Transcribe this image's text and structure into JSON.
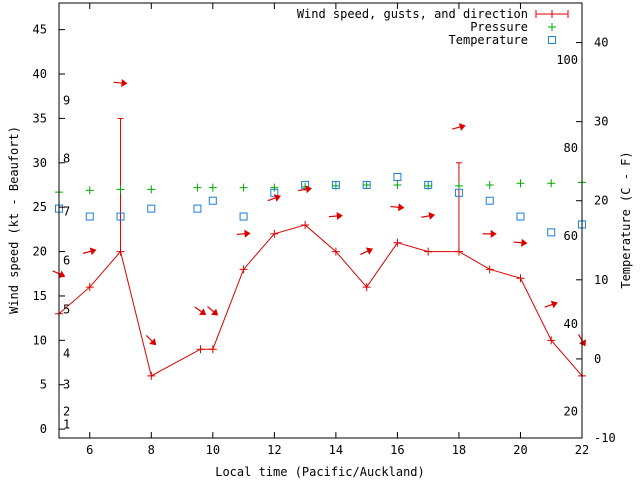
{
  "chart_data": {
    "type": "line",
    "xlabel": "Local time (Pacific/Auckland)",
    "ylabel": "Wind speed (kt - Beaufort)",
    "y2label": "Temperature (C - F)",
    "xlim": [
      5,
      22
    ],
    "ylim": [
      -1,
      48
    ],
    "y2lim": [
      -10,
      45
    ],
    "x_ticks": [
      "6",
      "8",
      "10",
      "12",
      "14",
      "16",
      "18",
      "20",
      "22"
    ],
    "y_ticks": [
      "0",
      "5",
      "10",
      "15",
      "20",
      "25",
      "30",
      "35",
      "40",
      "45"
    ],
    "y2_ticks": [
      "-10",
      "0",
      "10",
      "20",
      "30",
      "40"
    ],
    "fahrenheit_ticks": [
      "20",
      "40",
      "60",
      "80",
      "100"
    ],
    "beaufort_ticks": [
      "1",
      "2",
      "3",
      "4",
      "5",
      "6",
      "7",
      "8",
      "9"
    ],
    "legend_position": "top-right",
    "colors": {
      "wind": "#dd0000",
      "pressure": "#00aa00",
      "temperature": "#1c7fd6"
    },
    "series": [
      {
        "name": "Wind speed, gusts, and direction",
        "x": [
          5,
          6,
          7,
          8,
          9.6,
          10,
          11,
          12,
          13,
          14,
          15,
          16,
          17,
          18,
          19,
          20,
          21,
          22
        ],
        "values": [
          13,
          16,
          20,
          6,
          9,
          9,
          18,
          22,
          23,
          20,
          16,
          21,
          20,
          20,
          18,
          17,
          10,
          6
        ],
        "gusts": [
          {
            "x": 7,
            "value": 35
          },
          {
            "x": 18,
            "value": 30
          }
        ]
      },
      {
        "name": "Pressure",
        "x": [
          5,
          6,
          7,
          8,
          9.5,
          10,
          11,
          12,
          13,
          14,
          15,
          16,
          17,
          18,
          19,
          20,
          21,
          22
        ],
        "values": [
          26.7,
          26.9,
          27.0,
          27.0,
          27.2,
          27.2,
          27.2,
          27.2,
          27.3,
          27.4,
          27.5,
          27.5,
          27.4,
          27.4,
          27.5,
          27.7,
          27.7,
          27.8
        ]
      },
      {
        "name": "Temperature",
        "x": [
          5,
          6,
          7,
          8,
          9.5,
          10,
          11,
          12,
          13,
          14,
          15,
          16,
          17,
          18,
          19,
          20,
          21,
          22
        ],
        "values": [
          19,
          18,
          18,
          19,
          19,
          20,
          18,
          21,
          22,
          22,
          22,
          23,
          22,
          21,
          20,
          18,
          16,
          17
        ]
      }
    ],
    "wind_arrows": [
      {
        "x": 5,
        "y": 17.5,
        "angle": 25
      },
      {
        "x": 6,
        "y": 20,
        "angle": -15
      },
      {
        "x": 7,
        "y": 39,
        "angle": 5
      },
      {
        "x": 8,
        "y": 10,
        "angle": 45
      },
      {
        "x": 9.6,
        "y": 13.3,
        "angle": 35
      },
      {
        "x": 10,
        "y": 13.3,
        "angle": 40
      },
      {
        "x": 11,
        "y": 22,
        "angle": -5
      },
      {
        "x": 12,
        "y": 26,
        "angle": -20
      },
      {
        "x": 13,
        "y": 27,
        "angle": -10
      },
      {
        "x": 14,
        "y": 24,
        "angle": -5
      },
      {
        "x": 15,
        "y": 20,
        "angle": -25
      },
      {
        "x": 16,
        "y": 25,
        "angle": 5
      },
      {
        "x": 17,
        "y": 24,
        "angle": -10
      },
      {
        "x": 18,
        "y": 34,
        "angle": -15
      },
      {
        "x": 19,
        "y": 22,
        "angle": 0
      },
      {
        "x": 20,
        "y": 21,
        "angle": 5
      },
      {
        "x": 21,
        "y": 14,
        "angle": -20
      },
      {
        "x": 22,
        "y": 10,
        "angle": 60
      }
    ]
  }
}
